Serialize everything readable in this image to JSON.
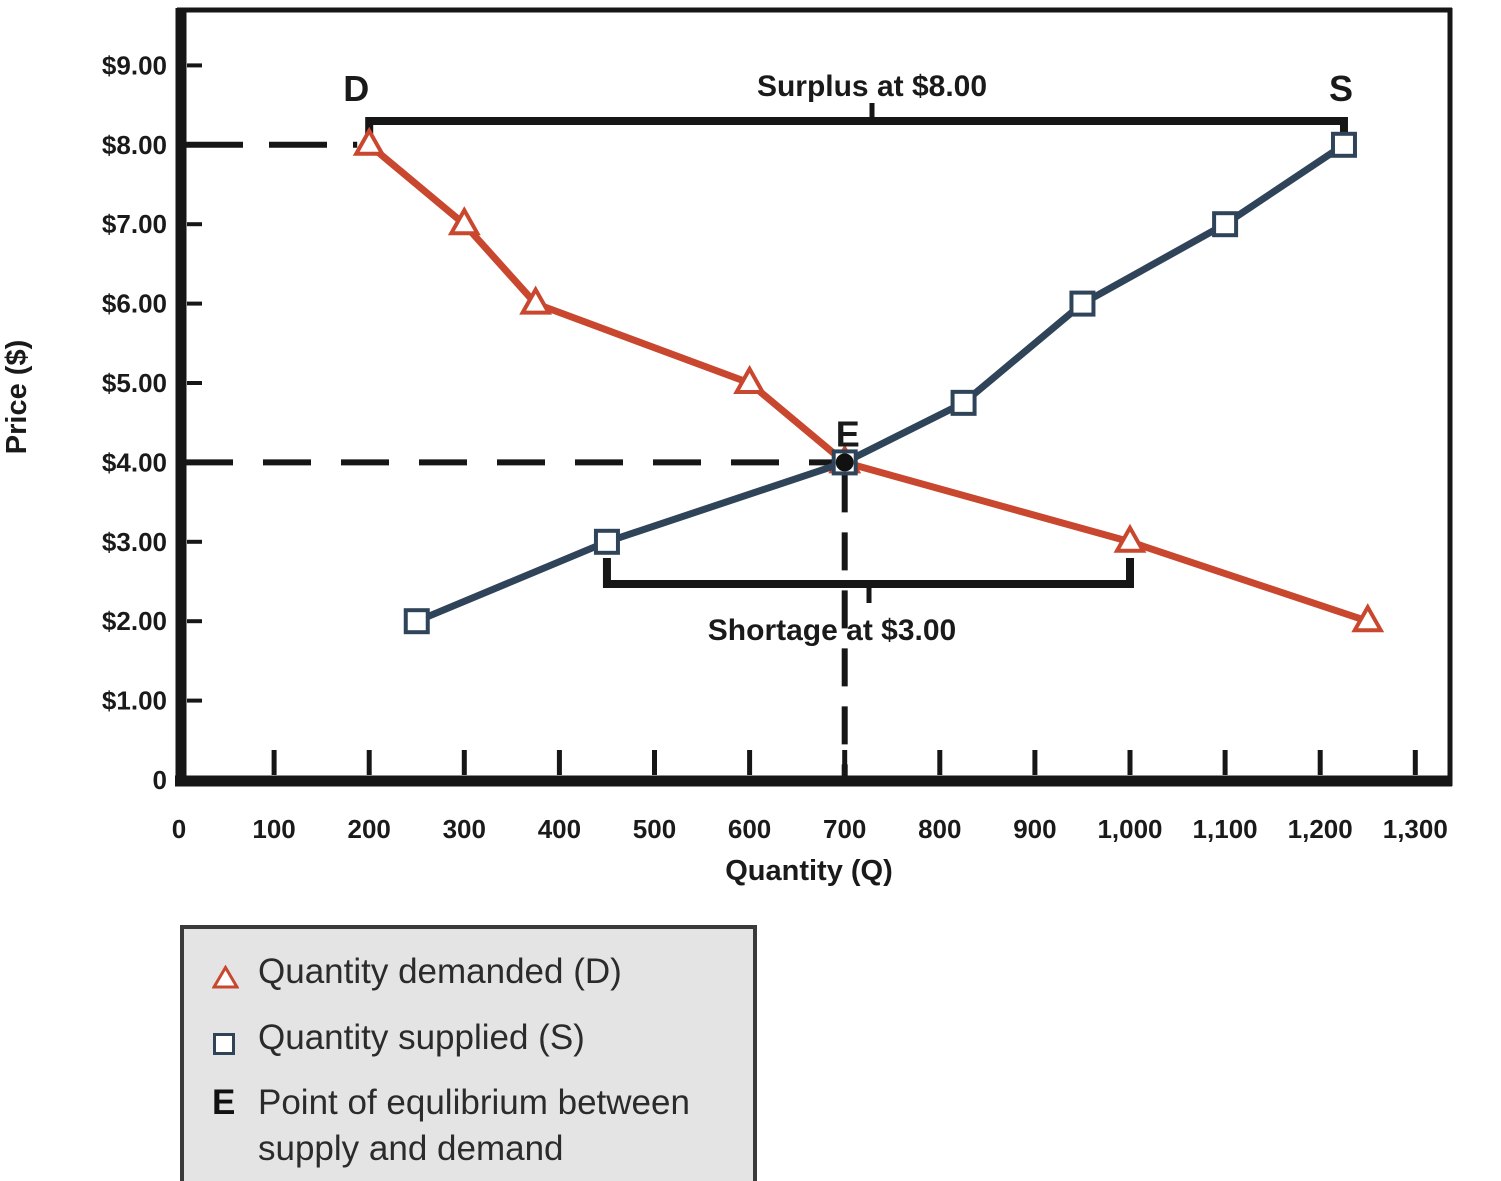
{
  "chart_data": {
    "type": "line",
    "title": "",
    "xlabel": "Quantity (Q)",
    "ylabel": "Price ($)",
    "xlim": [
      0,
      1300
    ],
    "ylim": [
      0,
      9
    ],
    "grid": false,
    "legend_position": "bottom-left",
    "x_ticks": [
      {
        "v": 0,
        "label": "0"
      },
      {
        "v": 100,
        "label": "100"
      },
      {
        "v": 200,
        "label": "200"
      },
      {
        "v": 300,
        "label": "300"
      },
      {
        "v": 400,
        "label": "400"
      },
      {
        "v": 500,
        "label": "500"
      },
      {
        "v": 600,
        "label": "600"
      },
      {
        "v": 700,
        "label": "700"
      },
      {
        "v": 800,
        "label": "800"
      },
      {
        "v": 900,
        "label": "900"
      },
      {
        "v": 1000,
        "label": "1,000"
      },
      {
        "v": 1100,
        "label": "1,100"
      },
      {
        "v": 1200,
        "label": "1,200"
      },
      {
        "v": 1300,
        "label": "1,300"
      }
    ],
    "y_ticks": [
      {
        "v": 0,
        "label": "0"
      },
      {
        "v": 1,
        "label": "$1.00"
      },
      {
        "v": 2,
        "label": "$2.00"
      },
      {
        "v": 3,
        "label": "$3.00"
      },
      {
        "v": 4,
        "label": "$4.00"
      },
      {
        "v": 5,
        "label": "$5.00"
      },
      {
        "v": 6,
        "label": "$6.00"
      },
      {
        "v": 7,
        "label": "$7.00"
      },
      {
        "v": 8,
        "label": "$8.00"
      },
      {
        "v": 9,
        "label": "$9.00"
      }
    ],
    "series": [
      {
        "name": "Quantity demanded (D)",
        "curve_label": "D",
        "marker": "triangle",
        "color": "#c9472e",
        "points": [
          {
            "q": 200,
            "p": 8
          },
          {
            "q": 300,
            "p": 7
          },
          {
            "q": 375,
            "p": 6
          },
          {
            "q": 600,
            "p": 5
          },
          {
            "q": 700,
            "p": 4
          },
          {
            "q": 1000,
            "p": 3
          },
          {
            "q": 1250,
            "p": 2
          }
        ]
      },
      {
        "name": "Quantity supplied (S)",
        "curve_label": "S",
        "marker": "square",
        "color": "#2f4459",
        "points": [
          {
            "q": 250,
            "p": 2
          },
          {
            "q": 450,
            "p": 3
          },
          {
            "q": 700,
            "p": 4
          },
          {
            "q": 825,
            "p": 4.75
          },
          {
            "q": 950,
            "p": 6
          },
          {
            "q": 1100,
            "p": 7
          },
          {
            "q": 1225,
            "p": 8
          }
        ]
      }
    ],
    "equilibrium": {
      "label": "E",
      "q": 700,
      "p": 4
    },
    "annotations": {
      "surplus": {
        "text": "Surplus at $8.00",
        "price": 8,
        "from_q": 200,
        "to_q": 1225
      },
      "shortage": {
        "text": "Shortage at $3.00",
        "price": 3,
        "from_q": 450,
        "to_q": 1000
      }
    }
  },
  "legend": {
    "items": [
      {
        "symbol": "triangle",
        "label": "Quantity demanded (D)"
      },
      {
        "symbol": "square",
        "label": "Quantity supplied (S)"
      },
      {
        "symbol": "E",
        "label": "Point of equlibrium between supply and demand"
      }
    ]
  }
}
